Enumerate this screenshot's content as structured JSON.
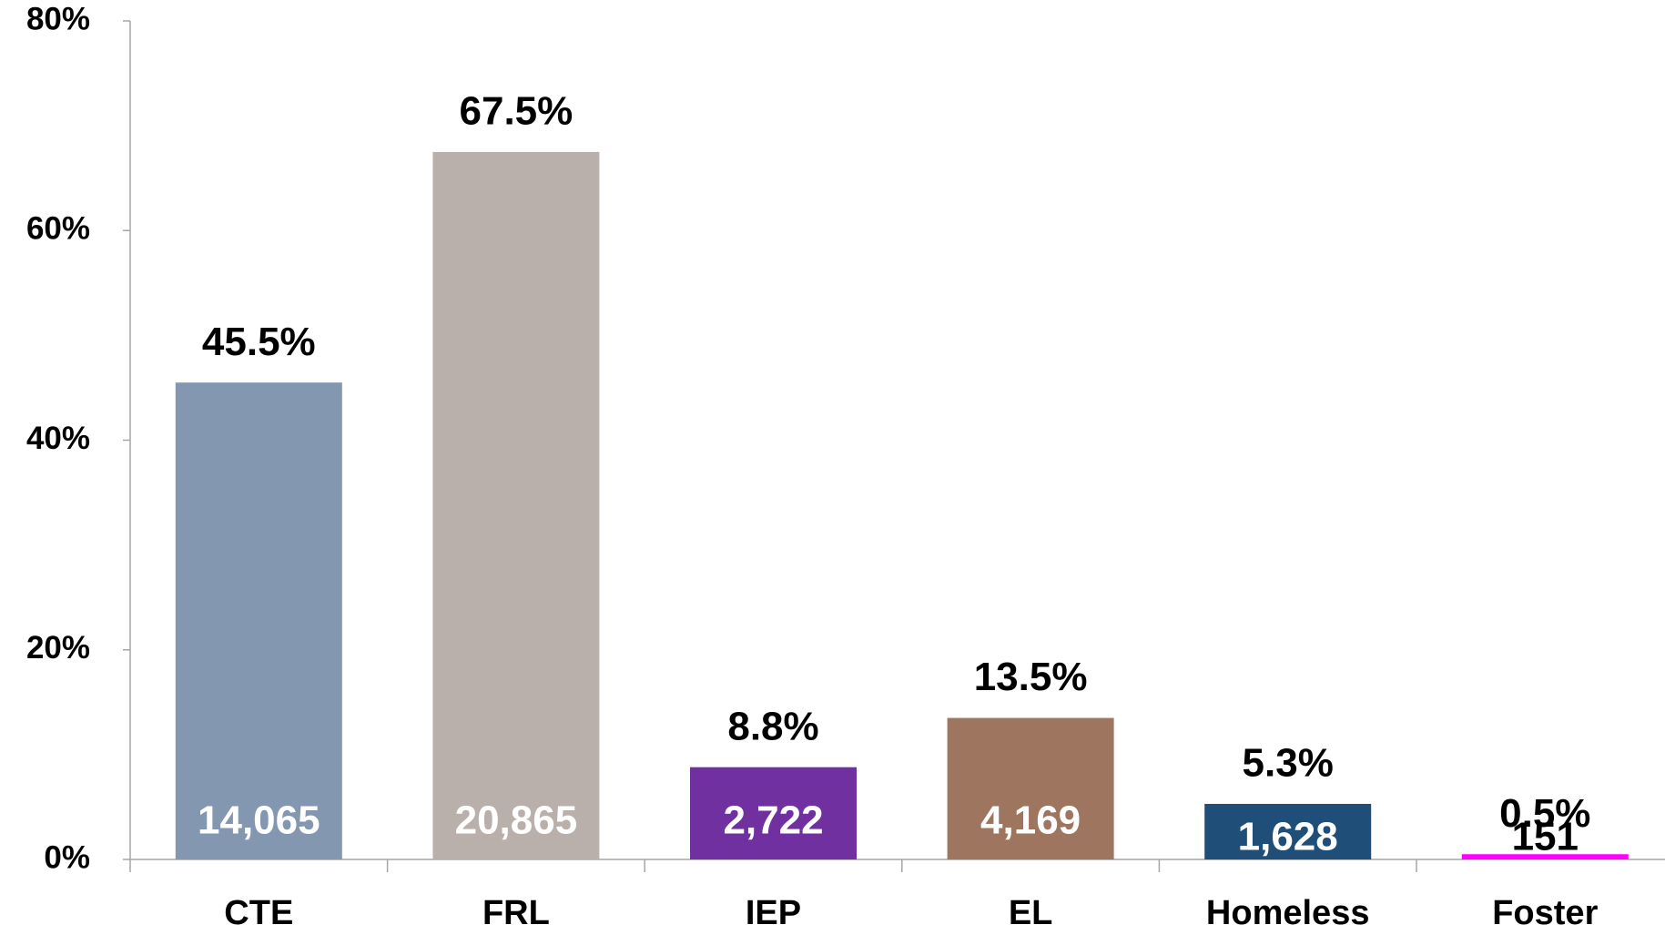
{
  "chart_data": {
    "type": "bar",
    "categories": [
      "CTE",
      "FRL",
      "IEP",
      "EL",
      "Homeless",
      "Foster"
    ],
    "values": [
      45.5,
      67.5,
      8.8,
      13.5,
      5.3,
      0.5
    ],
    "value_labels": [
      "45.5%",
      "67.5%",
      "8.8%",
      "13.5%",
      "5.3%",
      "0.5%"
    ],
    "counts": [
      14065,
      20865,
      2722,
      4169,
      1628,
      151
    ],
    "count_labels": [
      "14,065",
      "20,865",
      "2,722",
      "4,169",
      "1,628",
      "151"
    ],
    "colors": [
      "#8497b0",
      "#bab0ab",
      "#7030a0",
      "#9e7660",
      "#1f4e79",
      "#ff00ff"
    ],
    "ylim": [
      0,
      80
    ],
    "yticks": [
      {
        "value": 0,
        "label": "0%"
      },
      {
        "value": 20,
        "label": "20%"
      },
      {
        "value": 40,
        "label": "40%"
      },
      {
        "value": 60,
        "label": "60%"
      },
      {
        "value": 80,
        "label": "80%"
      }
    ]
  }
}
